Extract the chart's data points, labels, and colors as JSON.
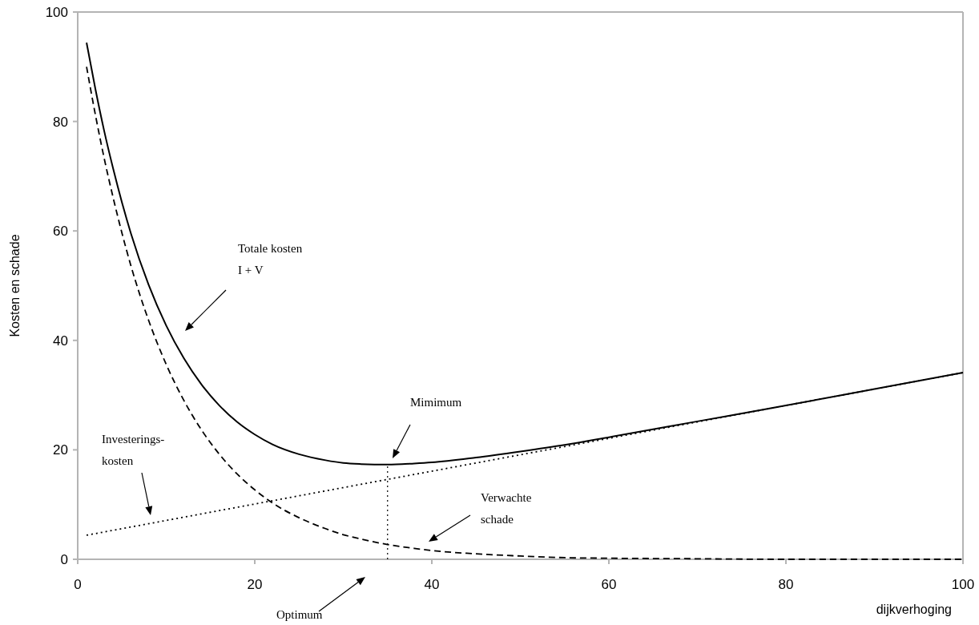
{
  "chart_data": {
    "type": "line",
    "xlabel": "dijkverhoging",
    "ylabel": "Kosten en schade",
    "x": [
      1,
      2,
      3,
      4,
      5,
      6,
      8,
      10,
      12,
      14,
      16,
      18,
      20,
      22,
      25,
      28,
      30,
      32,
      35,
      38,
      40,
      45,
      50,
      55,
      60,
      70,
      80,
      90,
      100
    ],
    "xlim": [
      0,
      100
    ],
    "xticks": [
      0,
      20,
      40,
      60,
      80,
      100
    ],
    "ylim": [
      0,
      100
    ],
    "yticks": [
      0,
      20,
      40,
      60,
      80,
      100
    ],
    "series": [
      {
        "color": "#000000",
        "line_style": "solid",
        "values": [
          94.4,
          85.9,
          78.2,
          71.4,
          65.2,
          59.6,
          50.2,
          42.7,
          36.7,
          31.9,
          28.1,
          25.1,
          22.8,
          21.0,
          19.2,
          18.1,
          17.6,
          17.4,
          17.3,
          17.5,
          17.7,
          18.6,
          19.7,
          20.9,
          22.3,
          25.2,
          28.1,
          31.1,
          34.1
        ]
      },
      {
        "color": "#000000",
        "line_style": "dotted",
        "values": [
          4.4,
          4.7,
          5.0,
          5.3,
          5.6,
          5.9,
          6.5,
          7.1,
          7.7,
          8.3,
          8.9,
          9.5,
          10.1,
          10.7,
          11.6,
          12.5,
          13.1,
          13.7,
          14.6,
          15.5,
          16.1,
          17.6,
          19.1,
          20.6,
          22.1,
          25.1,
          28.1,
          31.1,
          34.1
        ]
      },
      {
        "color": "#000000",
        "line_style": "dashed",
        "values": [
          90,
          81.2,
          73.2,
          66.1,
          59.6,
          53.7,
          43.7,
          35.6,
          29.0,
          23.6,
          19.2,
          15.6,
          12.7,
          10.3,
          7.6,
          5.6,
          4.5,
          3.7,
          2.7,
          2.0,
          1.6,
          1.0,
          0.6,
          0.3,
          0.2,
          0.1,
          0,
          0,
          0
        ]
      }
    ],
    "ref_lines": [
      {
        "axis": "x",
        "value": 35,
        "line_style": "dotted",
        "color": "#000000"
      }
    ],
    "annotations": [
      "Totale kosten\nI + V",
      "Investerings-\nkosten",
      "Mimimum",
      "Verwachte\nschade",
      "Optimum"
    ]
  }
}
